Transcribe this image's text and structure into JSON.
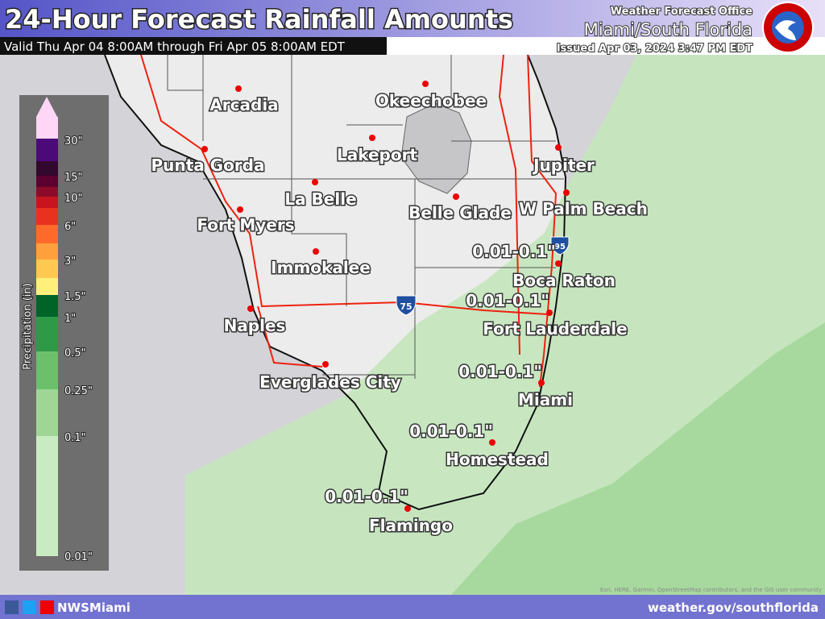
{
  "header": {
    "title": "24-Hour Forecast Rainfall Amounts",
    "valid": "Valid Thu Apr 04 8:00AM through Fri Apr 05 8:00AM EDT",
    "office_top": "Weather Forecast Office",
    "office_name": "Miami/South Florida",
    "issued": "Issued Apr 03, 2024 3:47 PM EDT"
  },
  "legend": {
    "title": "Precipitation (in)",
    "labels": [
      "30\"",
      "15\"",
      "10\"",
      "6\"",
      "3\"",
      "1.5\"",
      "1\"",
      "0.5\"",
      "0.25\"",
      "0.1\"",
      "0.01\""
    ],
    "colors": [
      "#ffd6f6",
      "#4b0a78",
      "#33082e",
      "#5c0030",
      "#8c0a2a",
      "#c8141e",
      "#e8321e",
      "#ff6a2a",
      "#ffa03c",
      "#ffc850",
      "#fff07c",
      "#006428",
      "#2e9a48",
      "#6cc06c",
      "#9fd696",
      "#c9ebc2"
    ]
  },
  "cities": [
    "Arcadia",
    "Okeechobee",
    "Punta Gorda",
    "Lakeport",
    "La Belle",
    "Belle Glade",
    "Jupiter",
    "W Palm Beach",
    "Fort Myers",
    "Immokalee",
    "Boca Raton",
    "Fort Lauderdale",
    "Naples",
    "Everglades City",
    "Miami",
    "Homestead",
    "Flamingo"
  ],
  "rainfall_labels": [
    "0.01-0.1\"",
    "0.01-0.1\"",
    "0.01-0.1\"",
    "0.01-0.1\"",
    "0.01-0.1\""
  ],
  "shields": [
    "75",
    "95"
  ],
  "footer": {
    "handle": "NWSMiami",
    "url": "weather.gov/southflorida",
    "attribution": "Esri, HERE, Garmin, OpenStreetMap contributors, and the GIS user community"
  }
}
